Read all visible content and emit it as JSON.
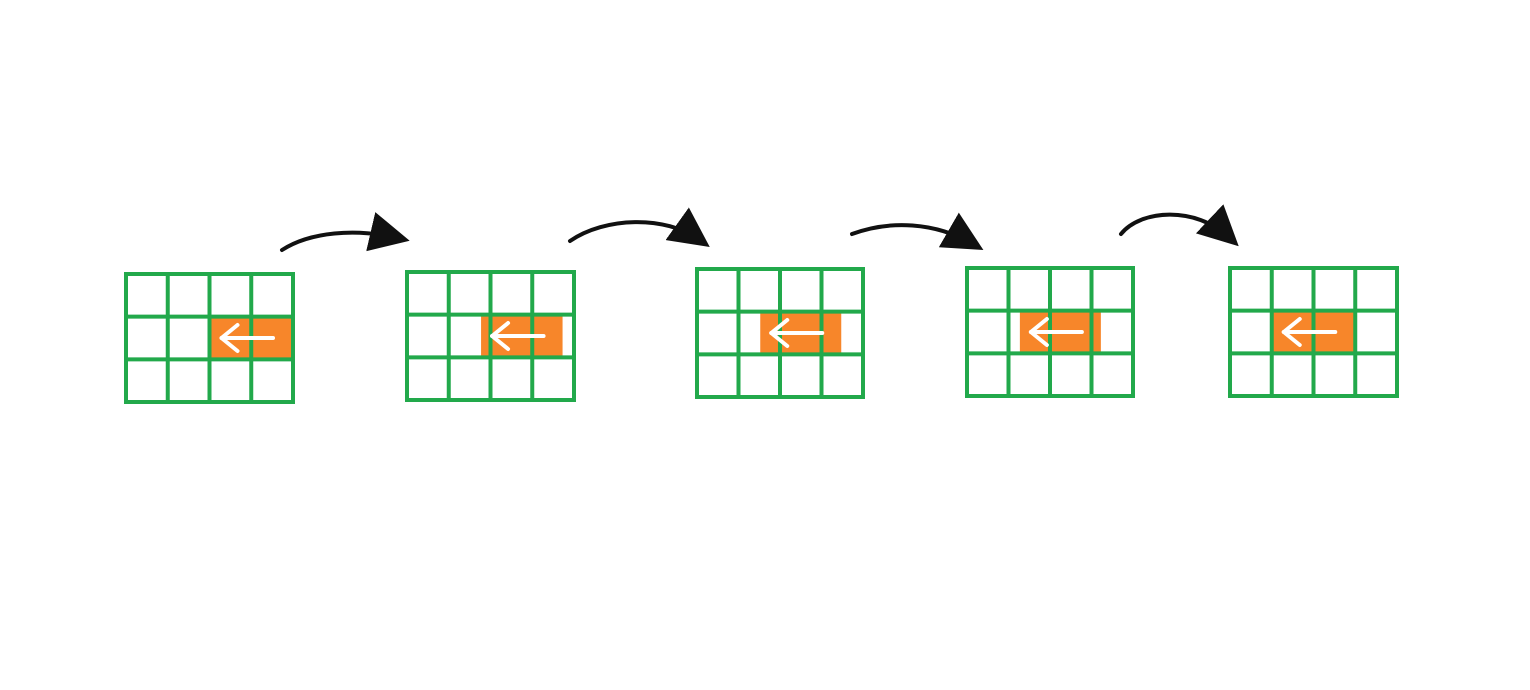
{
  "diagram": {
    "grid": {
      "rows": 3,
      "cols": 4,
      "line_color": "#22a94b",
      "fill": "#ffffff"
    },
    "highlight": {
      "row": 1,
      "col_span": 2,
      "fill": "#f7862a",
      "icon": "left-arrow-icon",
      "icon_color": "#ffffff"
    },
    "frames": [
      {
        "index": 1,
        "highlight_start_col": 2.0
      },
      {
        "index": 2,
        "highlight_start_col": 1.75
      },
      {
        "index": 3,
        "highlight_start_col": 1.5
      },
      {
        "index": 4,
        "highlight_start_col": 1.25
      },
      {
        "index": 5,
        "highlight_start_col": 1.0
      }
    ],
    "transitions": [
      {
        "from": 1,
        "to": 2,
        "icon": "curved-arrow-icon"
      },
      {
        "from": 2,
        "to": 3,
        "icon": "curved-arrow-icon"
      },
      {
        "from": 3,
        "to": 4,
        "icon": "curved-arrow-icon"
      },
      {
        "from": 4,
        "to": 5,
        "icon": "curved-arrow-icon"
      }
    ],
    "connector_color": "#111111"
  }
}
